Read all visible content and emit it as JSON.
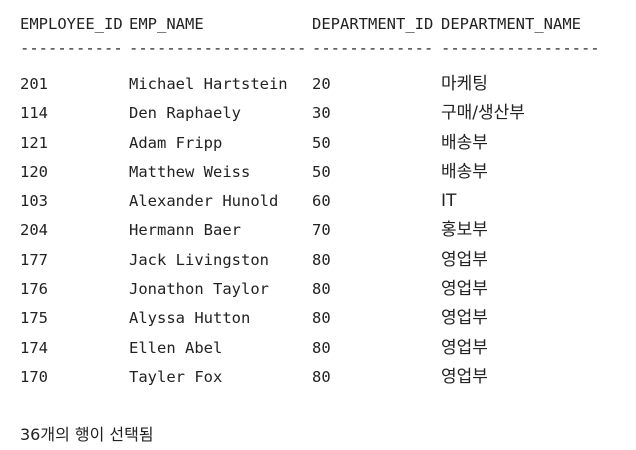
{
  "columns": {
    "employee_id": "EMPLOYEE_ID",
    "emp_name": "EMP_NAME",
    "department_id": "DEPARTMENT_ID",
    "department_name": "DEPARTMENT_NAME"
  },
  "separators": {
    "employee_id": "-----------",
    "emp_name": "-------------------",
    "department_id": "-------------",
    "department_name": "-----------------"
  },
  "rows": [
    {
      "employee_id": "201",
      "emp_name": "Michael Hartstein",
      "department_id": "20",
      "department_name": "마케팅"
    },
    {
      "employee_id": "114",
      "emp_name": "Den Raphaely",
      "department_id": "30",
      "department_name": "구매/생산부"
    },
    {
      "employee_id": "121",
      "emp_name": "Adam Fripp",
      "department_id": "50",
      "department_name": "배송부"
    },
    {
      "employee_id": "120",
      "emp_name": "Matthew Weiss",
      "department_id": "50",
      "department_name": "배송부"
    },
    {
      "employee_id": "103",
      "emp_name": "Alexander Hunold",
      "department_id": "60",
      "department_name": "IT"
    },
    {
      "employee_id": "204",
      "emp_name": "Hermann Baer",
      "department_id": "70",
      "department_name": "홍보부"
    },
    {
      "employee_id": "177",
      "emp_name": "Jack Livingston",
      "department_id": "80",
      "department_name": "영업부"
    },
    {
      "employee_id": "176",
      "emp_name": "Jonathon Taylor",
      "department_id": "80",
      "department_name": "영업부"
    },
    {
      "employee_id": "175",
      "emp_name": "Alyssa Hutton",
      "department_id": "80",
      "department_name": "영업부"
    },
    {
      "employee_id": "174",
      "emp_name": "Ellen Abel",
      "department_id": "80",
      "department_name": "영업부"
    },
    {
      "employee_id": "170",
      "emp_name": "Tayler Fox",
      "department_id": "80",
      "department_name": "영업부"
    }
  ],
  "footer": "36개의 행이 선택됨"
}
